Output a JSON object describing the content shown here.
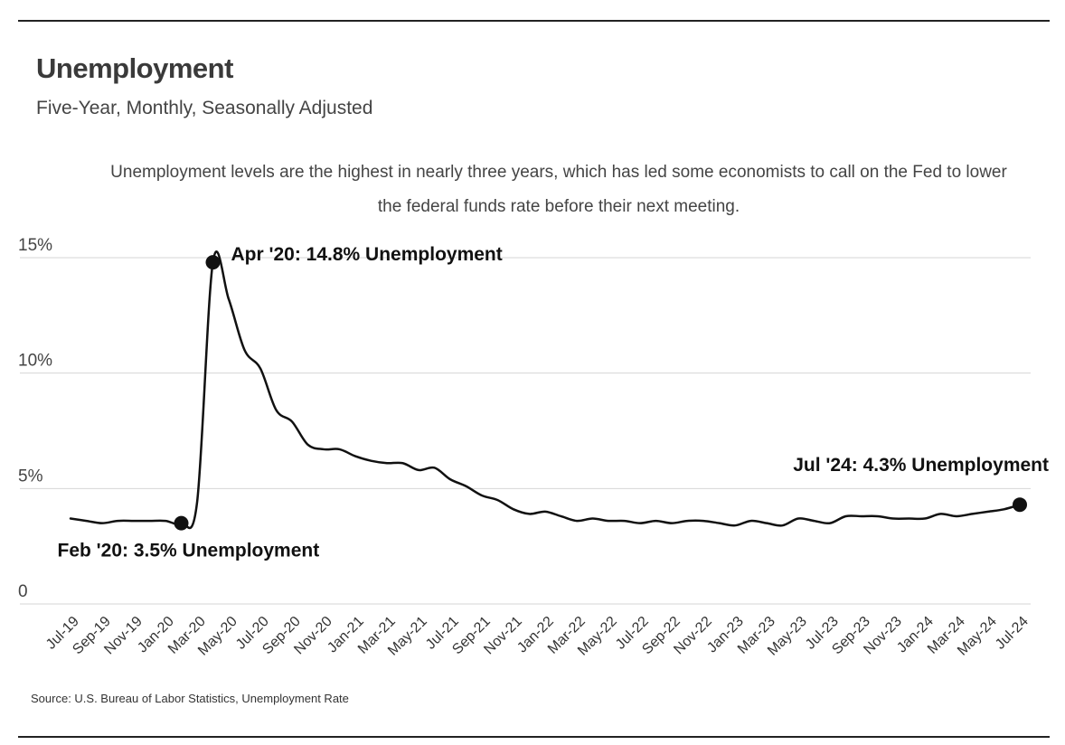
{
  "title": "Unemployment",
  "subtitle": "Five-Year, Monthly, Seasonally Adjusted",
  "note": "Unemployment levels are the highest in nearly three years, which has led some economists to call on the Fed to lower the federal funds rate before their next meeting.",
  "source": "Source:  U.S. Bureau of Labor Statistics, Unemployment Rate",
  "chart_data": {
    "type": "line",
    "ylim": [
      0,
      15
    ],
    "yticks": [
      0,
      5,
      10,
      15
    ],
    "ytick_labels": [
      "0",
      "5%",
      "10%",
      "15%"
    ],
    "grid": true,
    "x": [
      "Jul-19",
      "Aug-19",
      "Sep-19",
      "Oct-19",
      "Nov-19",
      "Dec-19",
      "Jan-20",
      "Feb-20",
      "Mar-20",
      "Apr-20",
      "May-20",
      "Jun-20",
      "Jul-20",
      "Aug-20",
      "Sep-20",
      "Oct-20",
      "Nov-20",
      "Dec-20",
      "Jan-21",
      "Feb-21",
      "Mar-21",
      "Apr-21",
      "May-21",
      "Jun-21",
      "Jul-21",
      "Aug-21",
      "Sep-21",
      "Oct-21",
      "Nov-21",
      "Dec-21",
      "Jan-22",
      "Feb-22",
      "Mar-22",
      "Apr-22",
      "May-22",
      "Jun-22",
      "Jul-22",
      "Aug-22",
      "Sep-22",
      "Oct-22",
      "Nov-22",
      "Dec-22",
      "Jan-23",
      "Feb-23",
      "Mar-23",
      "Apr-23",
      "May-23",
      "Jun-23",
      "Jul-23",
      "Aug-23",
      "Sep-23",
      "Oct-23",
      "Nov-23",
      "Dec-23",
      "Jan-24",
      "Feb-24",
      "Mar-24",
      "Apr-24",
      "May-24",
      "Jun-24",
      "Jul-24"
    ],
    "xtick_labels": [
      "Jul-19",
      "Sep-19",
      "Nov-19",
      "Jan-20",
      "Mar-20",
      "May-20",
      "Jul-20",
      "Sep-20",
      "Nov-20",
      "Jan-21",
      "Mar-21",
      "May-21",
      "Jul-21",
      "Sep-21",
      "Nov-21",
      "Jan-22",
      "Mar-22",
      "May-22",
      "Jul-22",
      "Sep-22",
      "Nov-22",
      "Jan-23",
      "Mar-23",
      "May-23",
      "Jul-23",
      "Sep-23",
      "Nov-23",
      "Jan-24",
      "Mar-24",
      "May-24",
      "Jul-24"
    ],
    "series": [
      {
        "values": [
          3.7,
          3.6,
          3.5,
          3.6,
          3.6,
          3.6,
          3.6,
          3.5,
          4.4,
          14.8,
          13.2,
          11.0,
          10.2,
          8.4,
          7.9,
          6.9,
          6.7,
          6.7,
          6.4,
          6.2,
          6.1,
          6.1,
          5.8,
          5.9,
          5.4,
          5.1,
          4.7,
          4.5,
          4.1,
          3.9,
          4.0,
          3.8,
          3.6,
          3.7,
          3.6,
          3.6,
          3.5,
          3.6,
          3.5,
          3.6,
          3.6,
          3.5,
          3.4,
          3.6,
          3.5,
          3.4,
          3.7,
          3.6,
          3.5,
          3.8,
          3.8,
          3.8,
          3.7,
          3.7,
          3.7,
          3.9,
          3.8,
          3.9,
          4.0,
          4.1,
          4.3
        ],
        "color": "#111111"
      }
    ],
    "annotations": [
      {
        "index": 7,
        "label": "Feb '20: 3.5% Unemployment",
        "position": "below-right"
      },
      {
        "index": 9,
        "label": "Apr '20: 14.8% Unemployment",
        "position": "right"
      },
      {
        "index": 60,
        "label": "Jul '24: 4.3% Unemployment",
        "position": "above-left"
      }
    ]
  }
}
